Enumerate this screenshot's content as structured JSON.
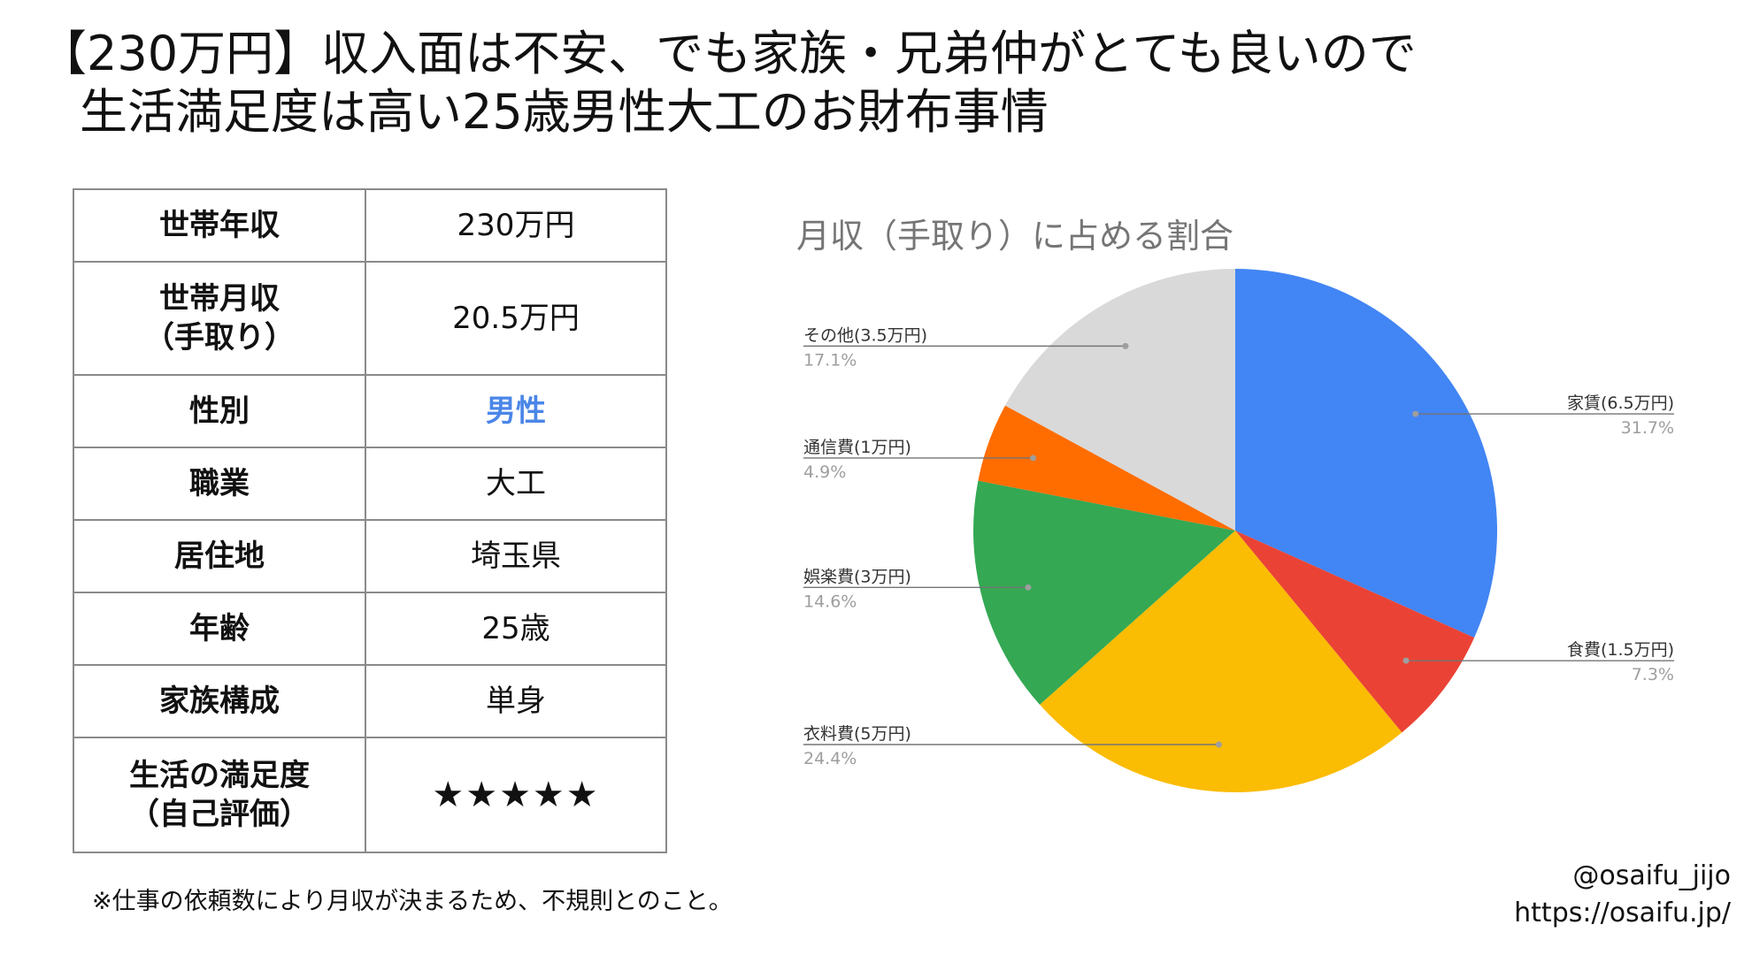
{
  "title": {
    "line1": "【230万円】収入面は不安、でも家族・兄弟仲がとても良いので",
    "line2": "生活満足度は高い25歳男性大工のお財布事情"
  },
  "profile": {
    "rows": [
      {
        "label": "世帯年収",
        "sub": "",
        "value": "230万円"
      },
      {
        "label": "世帯月収",
        "sub": "（手取り）",
        "value": "20.5万円"
      },
      {
        "label": "性別",
        "sub": "",
        "value": "男性"
      },
      {
        "label": "職業",
        "sub": "",
        "value": "大工"
      },
      {
        "label": "居住地",
        "sub": "",
        "value": "埼玉県"
      },
      {
        "label": "年齢",
        "sub": "",
        "value": "25歳"
      },
      {
        "label": "家族構成",
        "sub": "",
        "value": "単身"
      },
      {
        "label": "生活の満足度",
        "sub": "（自己評価）",
        "value": "★★★★★"
      }
    ],
    "accent_color": "#4a86e8"
  },
  "footnote": "※仕事の依頼数により月収が決まるため、不規則とのこと。",
  "credits": {
    "handle": "@osaifu_jijo",
    "url": "https://osaifu.jp/"
  },
  "chart_data": {
    "type": "pie",
    "title": "月収（手取り）に占める割合",
    "slices": [
      {
        "label": "家賃(6.5万円)",
        "percent_label": "31.7%",
        "value": 6.5,
        "color": "#4285f4"
      },
      {
        "label": "食費(1.5万円)",
        "percent_label": "7.3%",
        "value": 1.5,
        "color": "#ea4335"
      },
      {
        "label": "衣料費(5万円)",
        "percent_label": "24.4%",
        "value": 5,
        "color": "#fbbc04"
      },
      {
        "label": "娯楽費(3万円)",
        "percent_label": "14.6%",
        "value": 3,
        "color": "#34a853"
      },
      {
        "label": "通信費(1万円)",
        "percent_label": "4.9%",
        "value": 1,
        "color": "#ff6d01"
      },
      {
        "label": "その他(3.5万円)",
        "percent_label": "17.1%",
        "value": 3.5,
        "color": "#d9d9d9"
      }
    ],
    "start": "12 o'clock",
    "direction": "clockwise",
    "label_sides": [
      "right",
      "right",
      "left",
      "left",
      "left",
      "left"
    ]
  }
}
